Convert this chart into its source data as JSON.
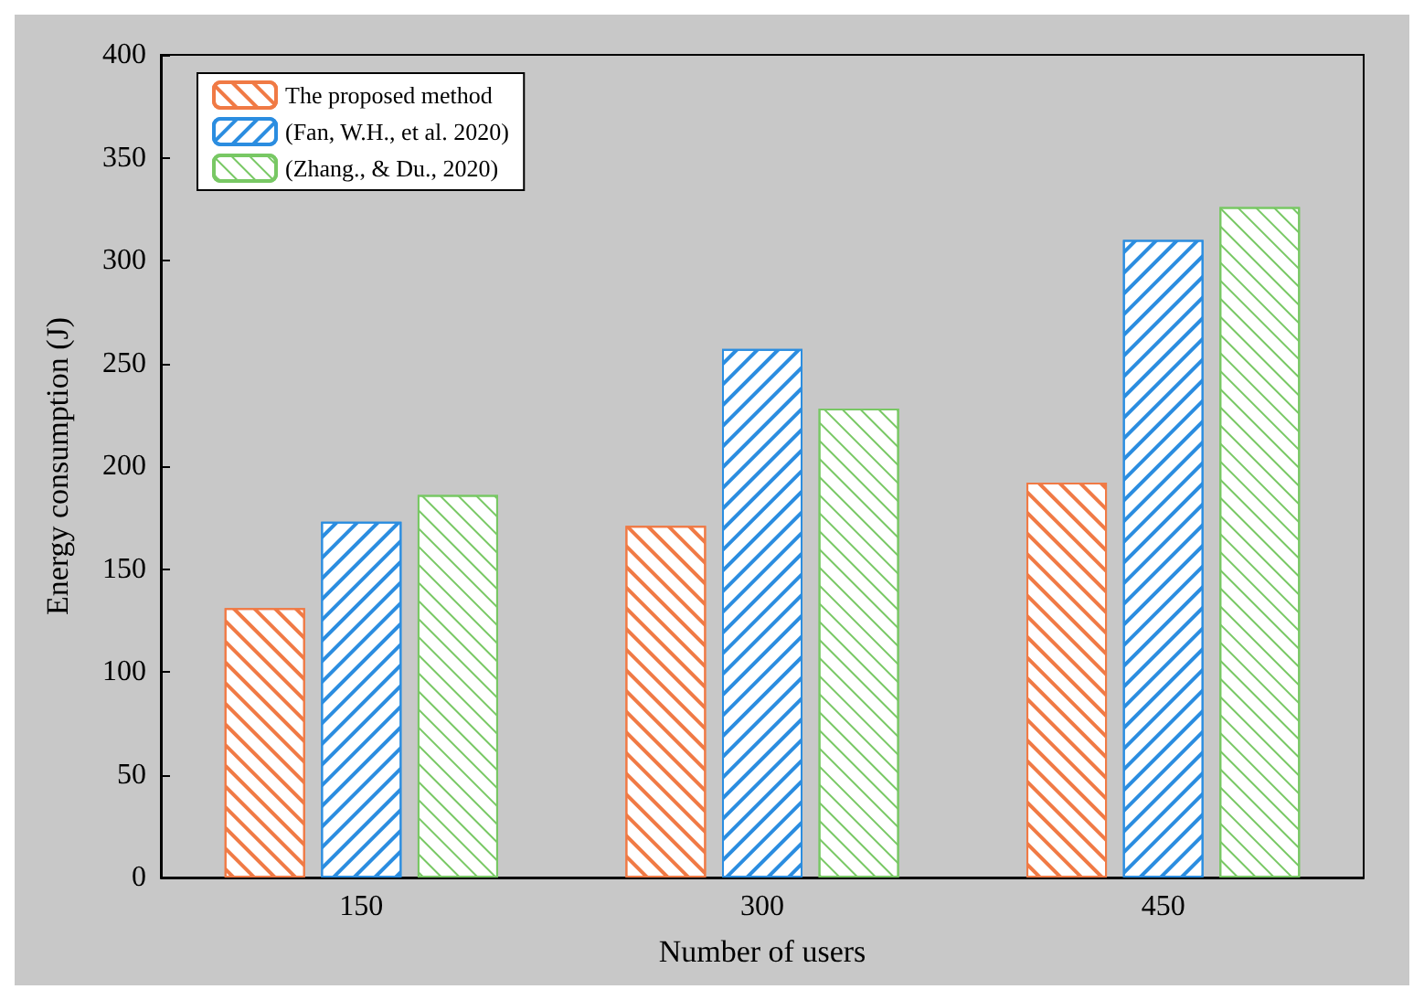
{
  "chart_data": {
    "type": "bar",
    "xlabel": "Number of users",
    "ylabel": "Energy consumption (J)",
    "categories": [
      "150",
      "300",
      "450"
    ],
    "series": [
      {
        "name": "The proposed method",
        "color": "#f07a45",
        "values": [
          131,
          171,
          192
        ]
      },
      {
        "name": "(Fan, W.H., et al. 2020)",
        "color": "#2b8de0",
        "values": [
          173,
          257,
          310
        ]
      },
      {
        "name": "(Zhang., & Du., 2020)",
        "color": "#78c864",
        "values": [
          186,
          228,
          326
        ]
      }
    ],
    "ylim": [
      0,
      400
    ],
    "yticks": [
      0,
      50,
      100,
      150,
      200,
      250,
      300,
      350,
      400
    ],
    "grid": false,
    "legend": "top left"
  }
}
